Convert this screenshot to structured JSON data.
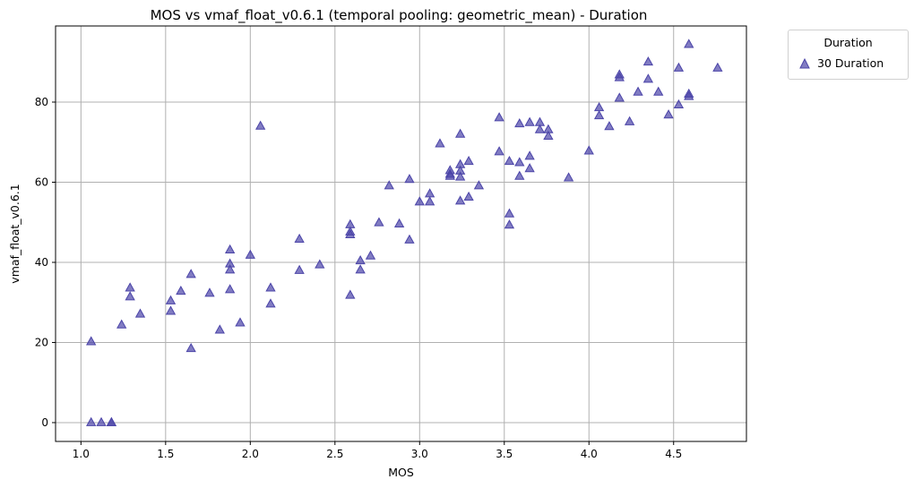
{
  "chart_data": {
    "type": "scatter",
    "title": "MOS vs vmaf_float_v0.6.1 (temporal pooling: geometric_mean) - Duration",
    "xlabel": "MOS",
    "ylabel": "vmaf_float_v0.6.1",
    "xlim": [
      0.85,
      4.93
    ],
    "ylim": [
      -4.7,
      99.0
    ],
    "xticks": [
      1.0,
      1.5,
      2.0,
      2.5,
      3.0,
      3.5,
      4.0,
      4.5
    ],
    "xtick_labels": [
      "1.0",
      "1.5",
      "2.0",
      "2.5",
      "3.0",
      "3.5",
      "4.0",
      "4.5"
    ],
    "yticks": [
      0,
      20,
      40,
      60,
      80
    ],
    "ytick_labels": [
      "0",
      "20",
      "40",
      "60",
      "80"
    ],
    "grid": true,
    "legend": {
      "title": "Duration",
      "placement": "outside-top-right"
    },
    "marker": "triangle",
    "series": [
      {
        "name": "30 Duration",
        "color": "#4b44a8",
        "points": [
          [
            1.06,
            20.2
          ],
          [
            1.06,
            0.0
          ],
          [
            1.12,
            0.0
          ],
          [
            1.18,
            0.0
          ],
          [
            1.18,
            0.0
          ],
          [
            1.24,
            24.4
          ],
          [
            1.29,
            33.6
          ],
          [
            1.29,
            31.4
          ],
          [
            1.35,
            27.1
          ],
          [
            1.53,
            30.4
          ],
          [
            1.53,
            27.8
          ],
          [
            1.59,
            32.8
          ],
          [
            1.65,
            37.0
          ],
          [
            1.65,
            18.5
          ],
          [
            1.76,
            32.3
          ],
          [
            1.82,
            23.1
          ],
          [
            1.88,
            43.1
          ],
          [
            1.88,
            39.6
          ],
          [
            1.88,
            38.1
          ],
          [
            1.88,
            33.2
          ],
          [
            1.94,
            24.9
          ],
          [
            2.0,
            41.8
          ],
          [
            2.06,
            74.0
          ],
          [
            2.12,
            33.6
          ],
          [
            2.12,
            29.6
          ],
          [
            2.29,
            45.8
          ],
          [
            2.29,
            38.0
          ],
          [
            2.41,
            39.4
          ],
          [
            2.59,
            49.4
          ],
          [
            2.59,
            47.6
          ],
          [
            2.59,
            46.9
          ],
          [
            2.59,
            31.8
          ],
          [
            2.65,
            40.4
          ],
          [
            2.65,
            38.1
          ],
          [
            2.71,
            41.6
          ],
          [
            2.76,
            49.9
          ],
          [
            2.82,
            59.1
          ],
          [
            2.88,
            49.6
          ],
          [
            2.94,
            60.7
          ],
          [
            2.94,
            45.6
          ],
          [
            3.0,
            55.1
          ],
          [
            3.06,
            57.1
          ],
          [
            3.06,
            55.1
          ],
          [
            3.12,
            69.6
          ],
          [
            3.18,
            62.9
          ],
          [
            3.18,
            62.0
          ],
          [
            3.18,
            61.5
          ],
          [
            3.24,
            72.0
          ],
          [
            3.24,
            64.4
          ],
          [
            3.24,
            62.8
          ],
          [
            3.24,
            61.3
          ],
          [
            3.24,
            55.3
          ],
          [
            3.29,
            65.2
          ],
          [
            3.29,
            56.3
          ],
          [
            3.35,
            59.1
          ],
          [
            3.47,
            76.1
          ],
          [
            3.47,
            67.6
          ],
          [
            3.53,
            65.2
          ],
          [
            3.53,
            52.1
          ],
          [
            3.53,
            49.3
          ],
          [
            3.59,
            74.6
          ],
          [
            3.59,
            64.9
          ],
          [
            3.59,
            61.5
          ],
          [
            3.65,
            74.9
          ],
          [
            3.65,
            66.5
          ],
          [
            3.65,
            63.4
          ],
          [
            3.71,
            74.9
          ],
          [
            3.71,
            73.1
          ],
          [
            3.76,
            73.1
          ],
          [
            3.76,
            71.5
          ],
          [
            3.88,
            61.1
          ],
          [
            4.0,
            67.8
          ],
          [
            4.06,
            78.6
          ],
          [
            4.06,
            76.6
          ],
          [
            4.12,
            73.9
          ],
          [
            4.18,
            86.8
          ],
          [
            4.18,
            86.1
          ],
          [
            4.18,
            81.0
          ],
          [
            4.24,
            75.1
          ],
          [
            4.29,
            82.5
          ],
          [
            4.35,
            90.0
          ],
          [
            4.35,
            85.7
          ],
          [
            4.41,
            82.5
          ],
          [
            4.47,
            76.8
          ],
          [
            4.53,
            88.5
          ],
          [
            4.53,
            79.3
          ],
          [
            4.59,
            94.4
          ],
          [
            4.59,
            82.0
          ],
          [
            4.59,
            81.4
          ],
          [
            4.76,
            88.5
          ]
        ]
      }
    ]
  }
}
